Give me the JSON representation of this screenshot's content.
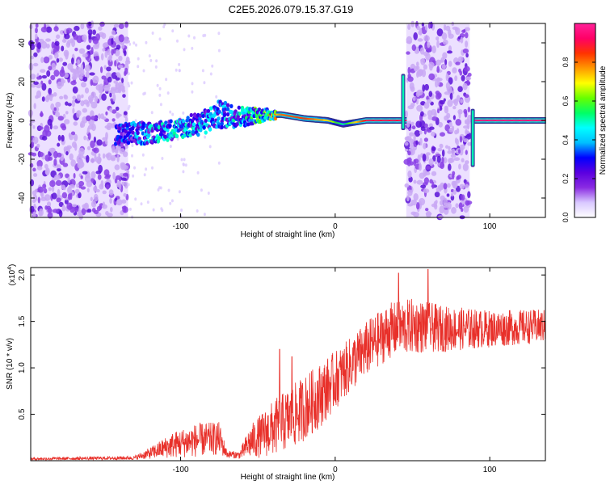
{
  "title": "C2E5.2026.079.15.37.G19",
  "colorbar": {
    "label": "Normalized spectral amplitude",
    "ticks": [
      "0.0",
      "0.2",
      "0.4",
      "0.6",
      "0.8"
    ],
    "range": [
      0,
      1
    ],
    "stops": [
      "#ffffff",
      "#d9c8ff",
      "#8a2be2",
      "#5b00e0",
      "#0000ff",
      "#00bfff",
      "#00ffff",
      "#00ff66",
      "#66ff00",
      "#ffff00",
      "#ff9900",
      "#ff3300",
      "#ff0066",
      "#ff2299"
    ]
  },
  "chart_data": [
    {
      "type": "heatmap",
      "name": "spectrogram",
      "xlabel": "Height of straight line (km)",
      "ylabel": "Frequency (Hz)",
      "xlim": [
        -197,
        136
      ],
      "ylim": [
        -50,
        50
      ],
      "xticks": [
        -100,
        0,
        100
      ],
      "xtick_labels": [
        "-100",
        "0",
        "100"
      ],
      "yticks": [
        -40,
        -20,
        0,
        20,
        40
      ],
      "ytick_labels": [
        "-40",
        "-20",
        "0",
        "20",
        "40"
      ],
      "noise_regions": [
        [
          -197,
          -134
        ],
        [
          46,
          87
        ]
      ],
      "signal_trace": [
        {
          "x": -142,
          "f": -8,
          "amp": 0.25,
          "spread": 6
        },
        {
          "x": -130,
          "f": -7,
          "amp": 0.35,
          "spread": 6
        },
        {
          "x": -115,
          "f": -6,
          "amp": 0.4,
          "spread": 5
        },
        {
          "x": -100,
          "f": -4,
          "amp": 0.4,
          "spread": 5
        },
        {
          "x": -85,
          "f": -1,
          "amp": 0.4,
          "spread": 6
        },
        {
          "x": -75,
          "f": 3,
          "amp": 0.35,
          "spread": 7
        },
        {
          "x": -60,
          "f": 2,
          "amp": 0.45,
          "spread": 5
        },
        {
          "x": -45,
          "f": 3,
          "amp": 0.55,
          "spread": 3
        },
        {
          "x": -35,
          "f": 3,
          "amp": 0.8,
          "spread": 1.5
        },
        {
          "x": -20,
          "f": 1,
          "amp": 0.85,
          "spread": 1
        },
        {
          "x": -5,
          "f": 0,
          "amp": 0.7,
          "spread": 1.5
        },
        {
          "x": 5,
          "f": -2,
          "amp": 0.5,
          "spread": 1.5
        },
        {
          "x": 20,
          "f": 0,
          "amp": 0.9,
          "spread": 1
        },
        {
          "x": 40,
          "f": 0,
          "amp": 0.9,
          "spread": 1
        },
        {
          "x": 92,
          "f": 0,
          "amp": 0.95,
          "spread": 1
        },
        {
          "x": 136,
          "f": 0,
          "amp": 0.95,
          "spread": 1
        }
      ],
      "spikes": [
        {
          "x": 44,
          "f_low": -5,
          "f_high": 24
        },
        {
          "x": 89,
          "f_low": -24,
          "f_high": 6
        }
      ]
    },
    {
      "type": "line",
      "name": "snr",
      "xlabel": "Height of straight line (km)",
      "ylabel": "SNR (10 * v/v)",
      "yexponent_label": "(x10",
      "yexponent_power": "4",
      "yexponent_close": ")",
      "xlim": [
        -197,
        136
      ],
      "ylim": [
        0,
        2.08
      ],
      "xticks": [
        -100,
        0,
        100
      ],
      "xtick_labels": [
        "-100",
        "0",
        "100"
      ],
      "yticks": [
        0.5,
        1.0,
        1.5,
        2.0
      ],
      "ytick_labels": [
        "0.5",
        "1.0",
        "1.5",
        "2.0"
      ],
      "color": "#e8302a",
      "envelope": [
        {
          "x": -197,
          "mean": 0.02,
          "amp": 0.015
        },
        {
          "x": -130,
          "mean": 0.03,
          "amp": 0.02
        },
        {
          "x": -120,
          "mean": 0.08,
          "amp": 0.06
        },
        {
          "x": -105,
          "mean": 0.17,
          "amp": 0.14
        },
        {
          "x": -90,
          "mean": 0.22,
          "amp": 0.18
        },
        {
          "x": -75,
          "mean": 0.24,
          "amp": 0.18
        },
        {
          "x": -70,
          "mean": 0.07,
          "amp": 0.04
        },
        {
          "x": -62,
          "mean": 0.06,
          "amp": 0.04
        },
        {
          "x": -55,
          "mean": 0.2,
          "amp": 0.18
        },
        {
          "x": -40,
          "mean": 0.35,
          "amp": 0.3
        },
        {
          "x": -25,
          "mean": 0.5,
          "amp": 0.35
        },
        {
          "x": -10,
          "mean": 0.7,
          "amp": 0.35
        },
        {
          "x": 5,
          "mean": 0.95,
          "amp": 0.3
        },
        {
          "x": 20,
          "mean": 1.2,
          "amp": 0.3
        },
        {
          "x": 35,
          "mean": 1.4,
          "amp": 0.3
        },
        {
          "x": 50,
          "mean": 1.45,
          "amp": 0.3
        },
        {
          "x": 70,
          "mean": 1.42,
          "amp": 0.25
        },
        {
          "x": 100,
          "mean": 1.42,
          "amp": 0.2
        },
        {
          "x": 136,
          "mean": 1.45,
          "amp": 0.18
        }
      ],
      "peaks": [
        {
          "x": 41,
          "y": 2.02
        },
        {
          "x": 60,
          "y": 2.06
        },
        {
          "x": -36,
          "y": 1.2
        },
        {
          "x": -28,
          "y": 1.12
        }
      ]
    }
  ]
}
